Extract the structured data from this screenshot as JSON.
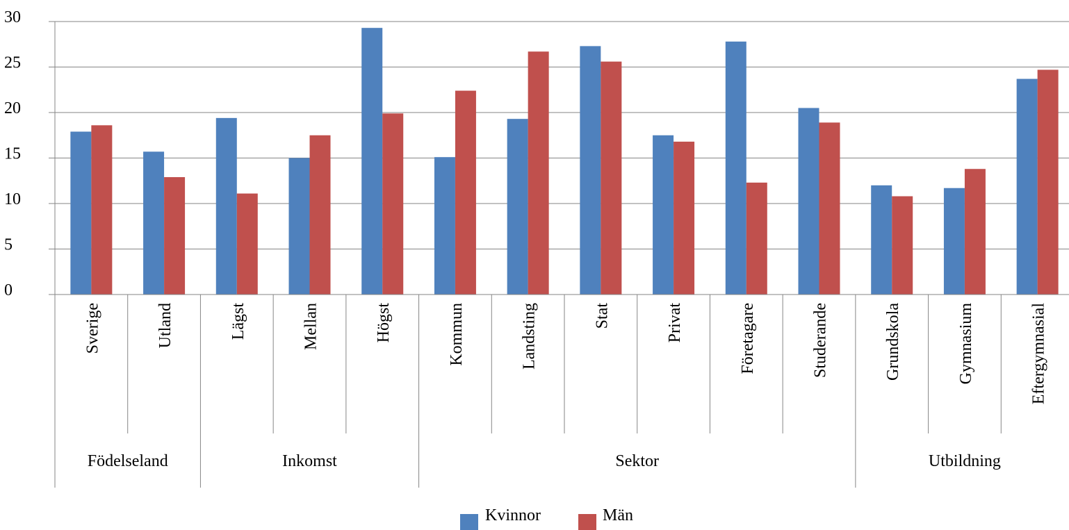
{
  "chart_data": {
    "type": "bar",
    "categories": [
      "Sverige",
      "Utland",
      "Lägst",
      "Mellan",
      "Högst",
      "Kommun",
      "Landsting",
      "Stat",
      "Privat",
      "Företagare",
      "Studerande",
      "Grundskola",
      "Gymnasium",
      "Eftergymnasial"
    ],
    "groups": [
      {
        "label": "Födelseland",
        "count": 2
      },
      {
        "label": "Inkomst",
        "count": 3
      },
      {
        "label": "Sektor",
        "count": 6
      },
      {
        "label": "Utbildning",
        "count": 3
      }
    ],
    "series": [
      {
        "name": "Kvinnor",
        "color": "#4F81BD",
        "values": [
          17.9,
          15.7,
          19.4,
          15.0,
          29.3,
          15.1,
          19.3,
          27.3,
          17.5,
          27.8,
          20.5,
          12.0,
          11.7,
          23.7
        ]
      },
      {
        "name": "Män",
        "color": "#C0504D",
        "values": [
          18.6,
          12.9,
          11.1,
          17.5,
          19.9,
          22.4,
          26.7,
          25.6,
          16.8,
          12.3,
          18.9,
          10.8,
          13.8,
          24.7
        ]
      }
    ],
    "yticks": [
      "0",
      "5",
      "10",
      "15",
      "20",
      "25",
      "30"
    ],
    "ylim": [
      0,
      30
    ],
    "grid": true,
    "legend": "bottom"
  }
}
